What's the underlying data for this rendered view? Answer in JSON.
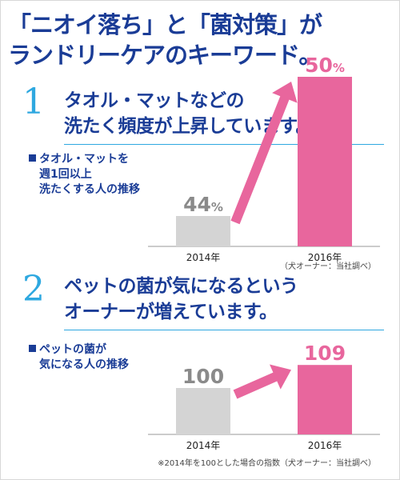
{
  "title": {
    "line1": "「ニオイ落ち」と「菌対策」が",
    "line2": "ランドリーケアのキーワード。"
  },
  "colors": {
    "navy": "#1a3c96",
    "cyan": "#2ea8e0",
    "pink": "#e8669d",
    "gray_bar": "#d4d4d4",
    "gray_text": "#8a8a8a"
  },
  "sections": [
    {
      "number": "1",
      "heading_line1": "タオル・マットなどの",
      "heading_line2": "洗たく頻度が上昇しています。",
      "caption_lines": [
        "タオル・マットを",
        "週1回以上",
        "洗たくする人の推移"
      ],
      "note": "（犬オーナー：当社調べ）"
    },
    {
      "number": "2",
      "heading_line1": "ペットの菌が気になるという",
      "heading_line2": "オーナーが増えています。",
      "caption_lines": [
        "ペットの菌が",
        "気になる人の推移"
      ],
      "note": "※2014年を100とした場合の指数（犬オーナー：当社調べ）"
    }
  ],
  "chart_data": [
    {
      "type": "bar",
      "categories": [
        "2014年",
        "2016年"
      ],
      "values": [
        44,
        50
      ],
      "value_labels": [
        "44",
        "50"
      ],
      "unit": "%"
    },
    {
      "type": "bar",
      "categories": [
        "2014年",
        "2016年"
      ],
      "values": [
        100,
        109
      ],
      "value_labels": [
        "100",
        "109"
      ],
      "unit": ""
    }
  ]
}
